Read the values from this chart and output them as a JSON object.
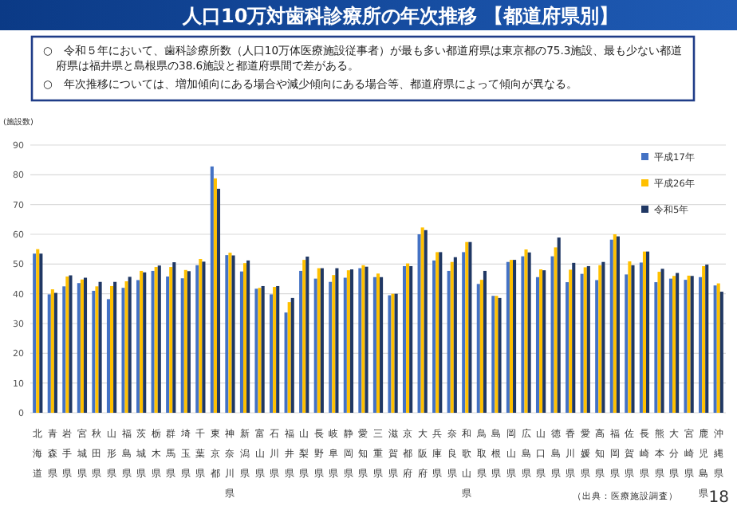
{
  "chart_data": {
    "type": "bar",
    "title": "人口10万対歯科診療所の年次推移 【都道府県別】",
    "annotations": [
      "○　令和５年において、歯科診療所数（人口10万体医療施設従事者）が最も多い都道府県は東京都の75.3施設、最も少ない都道府県は福井県と島根県の38.6施設と都道府県間で差がある。",
      "○　年次推移については、増加傾向にある場合や減少傾向にある場合等、都道府県によって傾向が異なる。",
      "（出典：医療施設調査）",
      "18"
    ],
    "ylabel": "(施設数)",
    "categories": [
      "北海道",
      "青森県",
      "岩手県",
      "宮城県",
      "秋田県",
      "山形県",
      "福島県",
      "茨城県",
      "栃木県",
      "群馬県",
      "埼玉県",
      "千葉県",
      "東京都",
      "神奈川県",
      "新潟県",
      "富山県",
      "石川県",
      "福井県",
      "山梨県",
      "長野県",
      "岐阜県",
      "静岡県",
      "愛知県",
      "三重県",
      "滋賀県",
      "京都府",
      "大阪府",
      "兵庫県",
      "奈良県",
      "和歌山県",
      "鳥取県",
      "島根県",
      "岡山県",
      "広島県",
      "山口県",
      "徳島県",
      "香川県",
      "愛媛県",
      "高知県",
      "福岡県",
      "佐賀県",
      "長崎県",
      "熊本県",
      "大分県",
      "宮崎県",
      "鹿児島県",
      "沖縄県"
    ],
    "series": [
      {
        "name": "平成17年",
        "color": "#4472c4",
        "values": [
          53.5,
          39.8,
          42.5,
          43.6,
          41,
          38.2,
          42,
          44.6,
          47.7,
          45.8,
          45.2,
          49.6,
          82.8,
          53,
          47.5,
          41.7,
          39.8,
          33.7,
          47.7,
          45.1,
          44,
          45.4,
          48.6,
          45.6,
          39.5,
          49.3,
          60,
          51.2,
          47.7,
          54,
          43.3,
          39.3,
          50.7,
          52.6,
          45.6,
          52.6,
          43.9,
          46.7,
          44.6,
          58.2,
          46.5,
          50.5,
          43.9,
          45.1,
          44.7,
          45.6,
          42.8
        ]
      },
      {
        "name": "平成26年",
        "color": "#ffc000",
        "values": [
          55,
          41.5,
          45.8,
          44.8,
          42.5,
          42.6,
          44.2,
          47.7,
          49,
          49,
          48,
          51.7,
          78.8,
          53.8,
          50.3,
          42,
          42.3,
          37.2,
          51.4,
          48.6,
          46.3,
          47.9,
          49.6,
          46.8,
          40,
          50.2,
          62.3,
          54,
          50.7,
          57.4,
          44.7,
          39.3,
          51.4,
          54.9,
          48.2,
          55.6,
          48.1,
          48.9,
          49.6,
          60,
          50.9,
          54.2,
          47.4,
          46,
          46.1,
          49.3,
          43.5
        ]
      },
      {
        "name": "令和5年",
        "color": "#203864",
        "values": [
          53.5,
          40.3,
          46.2,
          45.4,
          44,
          44,
          45.7,
          47.2,
          49.5,
          50.6,
          47.6,
          50.8,
          75.3,
          52.9,
          51.2,
          42.6,
          42.6,
          38.6,
          52.5,
          48.6,
          48.6,
          48.2,
          49.1,
          45.6,
          40,
          49.3,
          61.4,
          54,
          52.3,
          57.4,
          47.7,
          38.6,
          51.4,
          53.9,
          47.9,
          58.9,
          50.4,
          49.3,
          50.7,
          59.3,
          49.6,
          54.2,
          48.4,
          47,
          46,
          49.8,
          40.7
        ]
      }
    ],
    "ylim": [
      0,
      90
    ],
    "yticks": [
      0,
      10,
      20,
      30,
      40,
      50,
      60,
      70,
      80,
      90
    ],
    "grid": "y",
    "legend": "top right"
  }
}
